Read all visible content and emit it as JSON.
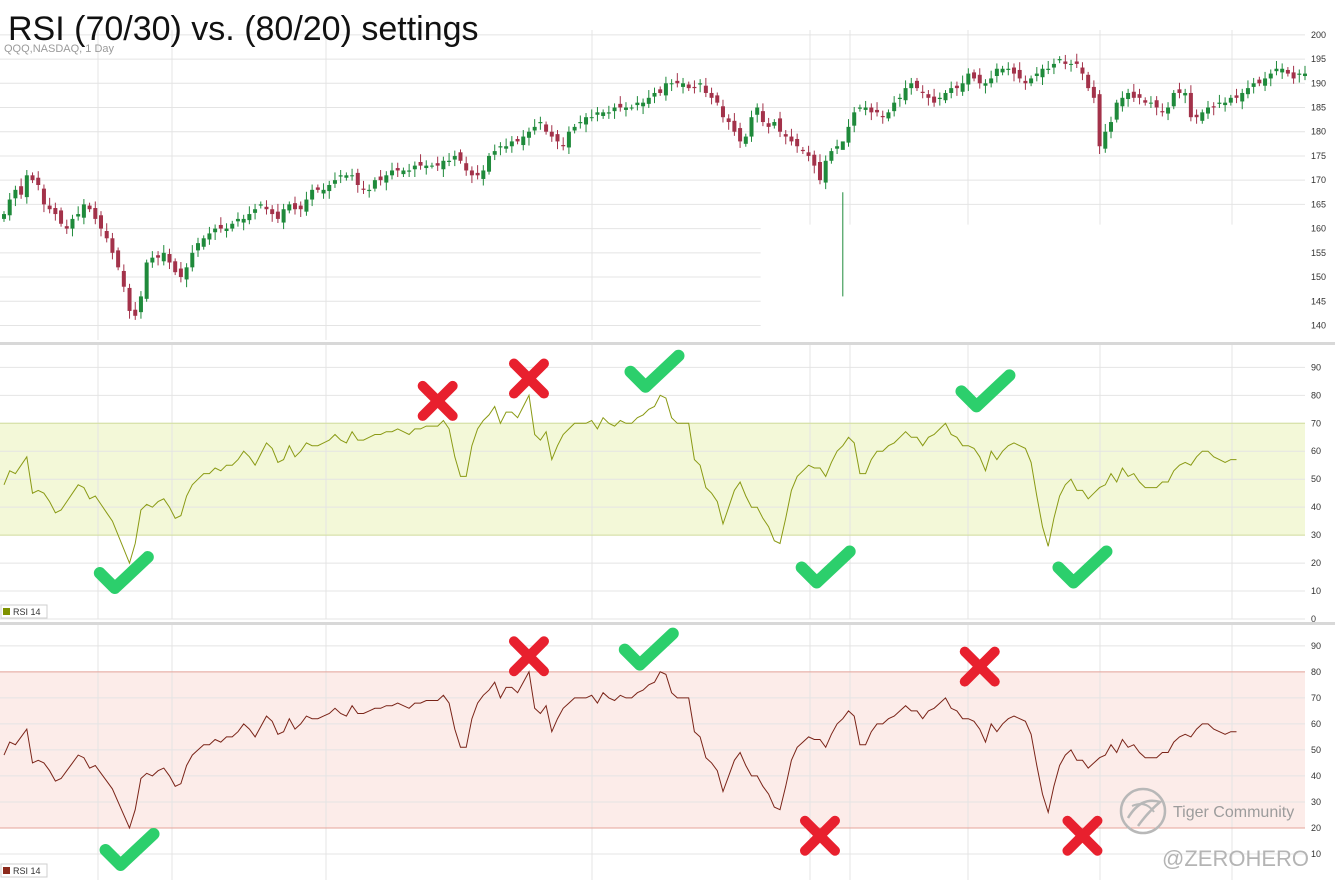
{
  "chart_data": [
    {
      "id": "price",
      "type": "candlestick",
      "title": "RSI (70/30) vs. (80/20) settings",
      "subtitle": "QQQ,NASDAQ, 1 Day",
      "ylim": [
        137,
        201
      ],
      "yticks": [
        140,
        145,
        150,
        155,
        160,
        165,
        170,
        175,
        180,
        185,
        190,
        195,
        200
      ],
      "grid": true,
      "colors": {
        "up": "#1f8a3b",
        "down": "#a3324a"
      },
      "closes": [
        163,
        166,
        168,
        167,
        171,
        170,
        169,
        165,
        164,
        163,
        161,
        160,
        162,
        163,
        165,
        164,
        162,
        160,
        158,
        155,
        152,
        148,
        143,
        142,
        146,
        153,
        154,
        154,
        155,
        153,
        151,
        150,
        152,
        155,
        157,
        158,
        159,
        160,
        160,
        160,
        161,
        162,
        162,
        163,
        164,
        165,
        164,
        163,
        162,
        164,
        165,
        164,
        164,
        166,
        168,
        168,
        168,
        169,
        170,
        171,
        171,
        171,
        169,
        168,
        168,
        170,
        170,
        171,
        172,
        172,
        172,
        172,
        173,
        173,
        173,
        173,
        173,
        174,
        174,
        175,
        174,
        172,
        171,
        171,
        172,
        175,
        176,
        177,
        177,
        178,
        178,
        179,
        180,
        181,
        182,
        180,
        179,
        178,
        177,
        180,
        181,
        182,
        183,
        183,
        184,
        184,
        184,
        185,
        185,
        185,
        185,
        186,
        186,
        187,
        188,
        188,
        190,
        190,
        190,
        190,
        189,
        189,
        190,
        188,
        187,
        186,
        183,
        182,
        180,
        178,
        179,
        183,
        185,
        182,
        181,
        182,
        180,
        179,
        178,
        177,
        176,
        175,
        173,
        170,
        174,
        176,
        177,
        178,
        181,
        184,
        185,
        185,
        184,
        184,
        183,
        184,
        186,
        187,
        189,
        190,
        189,
        188,
        187,
        186,
        187,
        188,
        189,
        189,
        190,
        192,
        191,
        190,
        190,
        191,
        193,
        193,
        193,
        192,
        191,
        190,
        191,
        192,
        193,
        193,
        194,
        195,
        194,
        194,
        194,
        192,
        189,
        187,
        177,
        180,
        182,
        186,
        187,
        188,
        187,
        187,
        186,
        186,
        185,
        184,
        185,
        188,
        188,
        188,
        183,
        183,
        184,
        185,
        185,
        186,
        186,
        187,
        187,
        188,
        189,
        190,
        190,
        191,
        192,
        193,
        193,
        192,
        191,
        192,
        192
      ],
      "wicks": [
        {
          "x": 147,
          "high": 167.5,
          "low": 146
        }
      ],
      "overlays": [
        {
          "type": "mask-rect",
          "region": "lower-right",
          "from_bar": 134,
          "below": 160
        }
      ]
    },
    {
      "id": "rsi1",
      "type": "line",
      "series": [
        {
          "name": "RSI 14",
          "color": "#8a9a14"
        }
      ],
      "legend_label": "RSI 14",
      "legend_color": "#7f9200",
      "ylim": [
        0,
        98
      ],
      "yticks": [
        0,
        10,
        20,
        30,
        40,
        50,
        60,
        70,
        80,
        90
      ],
      "band": {
        "low": 30,
        "high": 70,
        "fill": "#f3f8d8",
        "line": "#d3df9c"
      },
      "grid": true,
      "markers": [
        {
          "type": "check",
          "bar": 21,
          "y": 15
        },
        {
          "type": "cross",
          "bar": 76,
          "y": 78
        },
        {
          "type": "cross",
          "bar": 92,
          "y": 86
        },
        {
          "type": "check",
          "bar": 114,
          "y": 87
        },
        {
          "type": "check",
          "bar": 144,
          "y": 17
        },
        {
          "type": "check",
          "bar": 172,
          "y": 80
        },
        {
          "type": "check",
          "bar": 189,
          "y": 17
        }
      ]
    },
    {
      "id": "rsi2",
      "type": "line",
      "series": [
        {
          "name": "RSI 14",
          "color": "#7a2418"
        }
      ],
      "legend_label": "RSI 14",
      "legend_color": "#8c2a1c",
      "ylim": [
        0,
        98
      ],
      "yticks": [
        10,
        20,
        30,
        40,
        50,
        60,
        70,
        80,
        90
      ],
      "band": {
        "low": 20,
        "high": 80,
        "fill": "#fcece9",
        "line": "#e6a49a"
      },
      "grid": true,
      "markers": [
        {
          "type": "check",
          "bar": 22,
          "y": 10
        },
        {
          "type": "cross",
          "bar": 92,
          "y": 86
        },
        {
          "type": "check",
          "bar": 113,
          "y": 87
        },
        {
          "type": "cross",
          "bar": 143,
          "y": 17
        },
        {
          "type": "cross",
          "bar": 171,
          "y": 82
        },
        {
          "type": "cross",
          "bar": 189,
          "y": 17
        }
      ]
    }
  ],
  "rsi_values": [
    48,
    53,
    52,
    55,
    58,
    45,
    46,
    45,
    42,
    38,
    39,
    42,
    45,
    48,
    47,
    43,
    44,
    41,
    38,
    35,
    30,
    25,
    20,
    27,
    39,
    41,
    40,
    42,
    43,
    40,
    36,
    37,
    44,
    48,
    50,
    52,
    52,
    54,
    53,
    55,
    55,
    57,
    60,
    58,
    55,
    59,
    63,
    61,
    56,
    57,
    62,
    58,
    60,
    63,
    62,
    62,
    63,
    64,
    66,
    64,
    63,
    67,
    64,
    64,
    65,
    66,
    66,
    67,
    67,
    68,
    67,
    66,
    68,
    68,
    69,
    69,
    69,
    71,
    68,
    58,
    51,
    51,
    62,
    68,
    71,
    73,
    76,
    70,
    74,
    74,
    72,
    76,
    80,
    66,
    64,
    67,
    57,
    62,
    66,
    68,
    70,
    70,
    70,
    71,
    68,
    72,
    70,
    69,
    71,
    70,
    70,
    72,
    73,
    75,
    76,
    80,
    79,
    72,
    70,
    70,
    70,
    57,
    55,
    47,
    45,
    42,
    34,
    40,
    46,
    49,
    44,
    40,
    40,
    36,
    33,
    28,
    27,
    36,
    46,
    51,
    53,
    55,
    54,
    54,
    51,
    56,
    60,
    62,
    65,
    63,
    52,
    52,
    57,
    60,
    60,
    62,
    63,
    65,
    67,
    65,
    65,
    62,
    65,
    66,
    68,
    70,
    66,
    65,
    62,
    62,
    61,
    58,
    53,
    60,
    57,
    60,
    62,
    63,
    62,
    61,
    56,
    44,
    33,
    26,
    36,
    44,
    48,
    50,
    46,
    46,
    43,
    45,
    47,
    48,
    52,
    49,
    54,
    51,
    52,
    49,
    47,
    47,
    47,
    49,
    49,
    53,
    55,
    56,
    55,
    58,
    60,
    60,
    58,
    57,
    56,
    57,
    57
  ],
  "watermark": {
    "brand": "Tiger Community",
    "handle": "@ZEROHERO"
  },
  "colors": {
    "grid": "#e4e4e4",
    "check": "#2ccf6c",
    "cross": "#e8202e",
    "separator": "#d8d8d8"
  }
}
